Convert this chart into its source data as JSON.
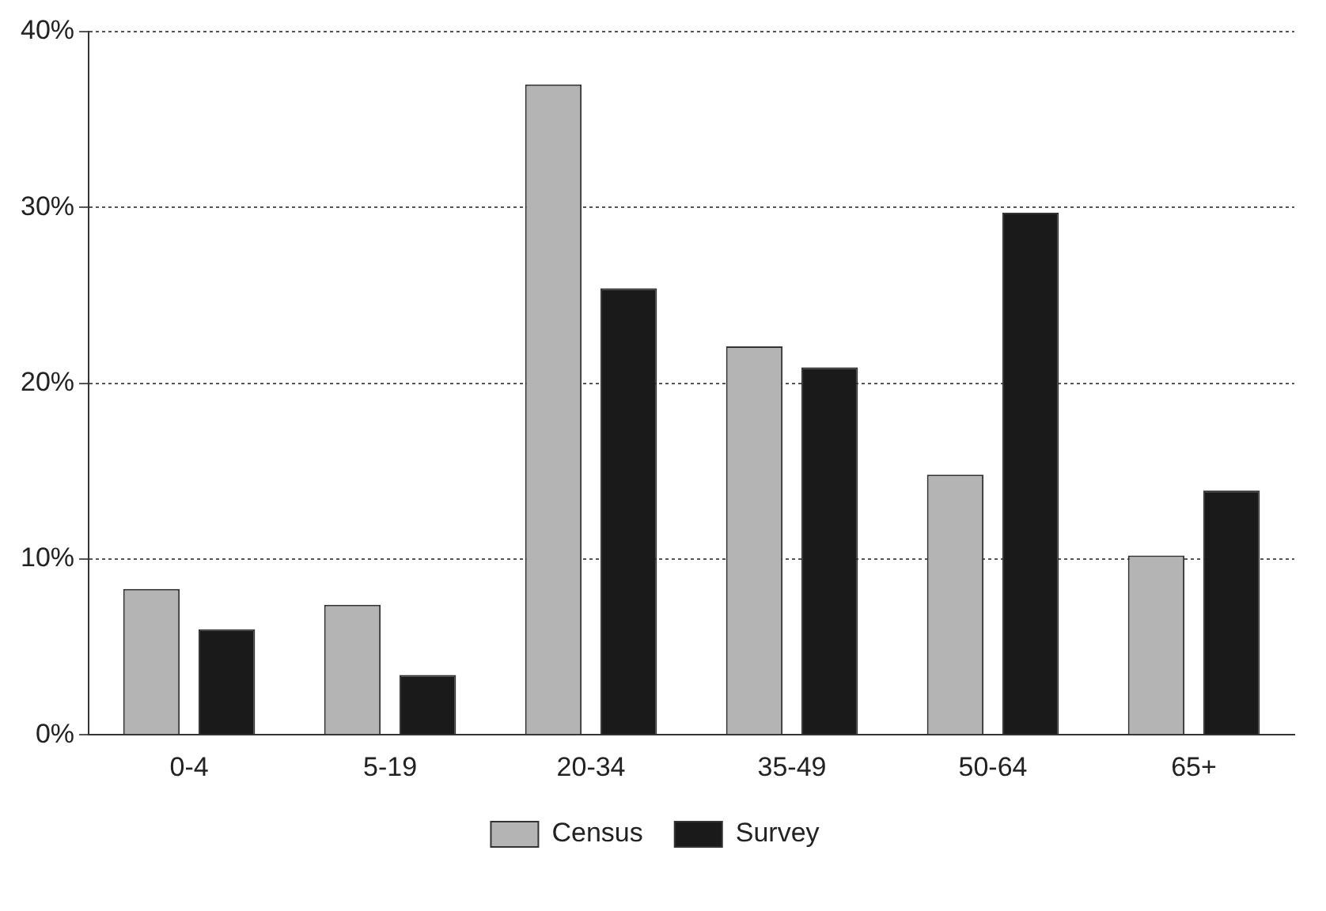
{
  "chart_data": {
    "type": "bar",
    "categories": [
      "0-4",
      "5-19",
      "20-34",
      "35-49",
      "50-64",
      "65+"
    ],
    "series": [
      {
        "name": "Census",
        "color": "#b4b4b4",
        "values": [
          8.3,
          7.4,
          37.0,
          22.1,
          14.8,
          10.2
        ]
      },
      {
        "name": "Survey",
        "color": "#1a1a1a",
        "values": [
          6.0,
          3.4,
          25.4,
          20.9,
          29.7,
          13.9
        ]
      }
    ],
    "ylim": [
      0,
      40
    ],
    "yticks": [
      {
        "value": 0,
        "label": "0%"
      },
      {
        "value": 10,
        "label": "10%"
      },
      {
        "value": 20,
        "label": "20%"
      },
      {
        "value": 30,
        "label": "30%"
      },
      {
        "value": 40,
        "label": "40%"
      }
    ],
    "grid": "y",
    "legend": "bottom"
  }
}
